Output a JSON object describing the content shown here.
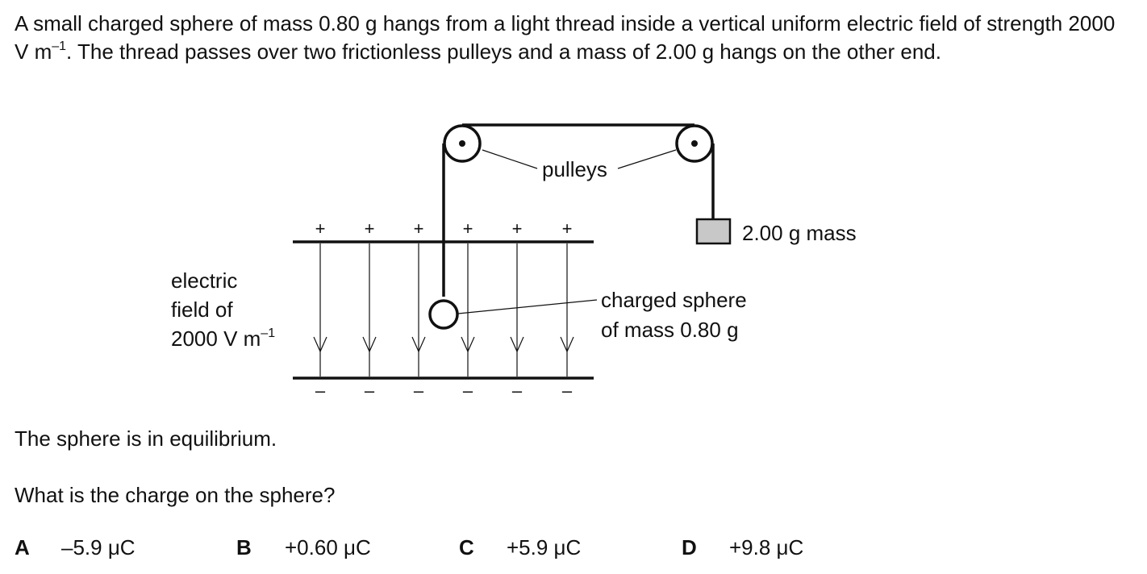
{
  "question": {
    "intro_part1": "A small charged sphere of mass 0.80 g hangs from a light thread inside a vertical uniform electric field of strength 2000 V m",
    "intro_exp": "–1",
    "intro_part2": ". The thread passes over two frictionless pulleys and a mass of 2.00 g hangs on the other end.",
    "equilibrium": "The sphere is in equilibrium.",
    "prompt": "What is the charge on the sphere?"
  },
  "diagram": {
    "label_pulleys": "pulleys",
    "label_mass": "2.00 g mass",
    "label_field_line1": "electric",
    "label_field_line2": "field of",
    "label_field_line3": "2000 V m",
    "label_field_exp": "–1",
    "label_sphere_line1": "charged sphere",
    "label_sphere_line2": "of mass 0.80 g",
    "plus_sign": "+",
    "minus_sign": "–"
  },
  "options": [
    {
      "letter": "A",
      "value": "–5.9 μC"
    },
    {
      "letter": "B",
      "value": "+0.60 μC"
    },
    {
      "letter": "C",
      "value": "+5.9 μC"
    },
    {
      "letter": "D",
      "value": "+9.8 μC"
    }
  ]
}
